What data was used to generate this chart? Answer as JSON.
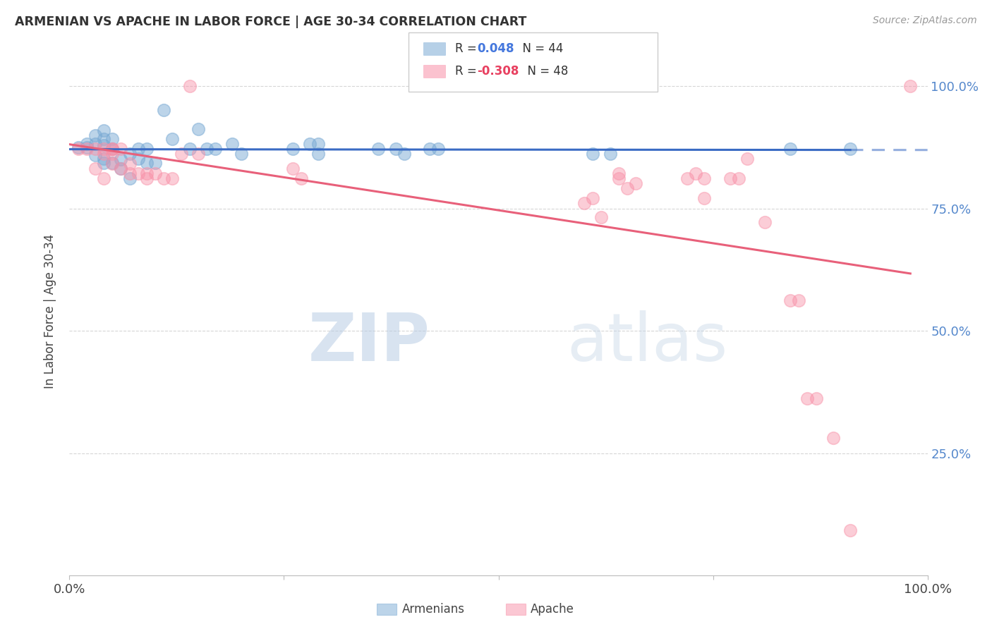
{
  "title": "ARMENIAN VS APACHE IN LABOR FORCE | AGE 30-34 CORRELATION CHART",
  "source": "Source: ZipAtlas.com",
  "ylabel": "In Labor Force | Age 30-34",
  "xlim": [
    0.0,
    1.0
  ],
  "ylim": [
    0.0,
    1.08
  ],
  "ytick_labels": [
    "25.0%",
    "50.0%",
    "75.0%",
    "100.0%"
  ],
  "ytick_values": [
    0.25,
    0.5,
    0.75,
    1.0
  ],
  "watermark_zip": "ZIP",
  "watermark_atlas": "atlas",
  "legend_armenian": "Armenians",
  "legend_apache": "Apache",
  "r_armenian": 0.048,
  "n_armenian": 44,
  "r_apache": -0.308,
  "n_apache": 48,
  "color_armenian": "#7aaad4",
  "color_apache": "#f891a8",
  "trendline_armenian_color": "#3a6bc4",
  "trendline_apache_color": "#e8607a",
  "grid_color": "#cccccc",
  "background_color": "#ffffff",
  "armenian_x": [
    0.01,
    0.02,
    0.02,
    0.03,
    0.03,
    0.03,
    0.04,
    0.04,
    0.04,
    0.04,
    0.04,
    0.05,
    0.05,
    0.05,
    0.06,
    0.06,
    0.07,
    0.07,
    0.08,
    0.08,
    0.09,
    0.09,
    0.1,
    0.11,
    0.12,
    0.14,
    0.15,
    0.16,
    0.17,
    0.19,
    0.2,
    0.26,
    0.28,
    0.29,
    0.29,
    0.36,
    0.38,
    0.39,
    0.42,
    0.43,
    0.61,
    0.63,
    0.84,
    0.91
  ],
  "armenian_y": [
    0.875,
    0.875,
    0.882,
    0.86,
    0.882,
    0.9,
    0.843,
    0.852,
    0.88,
    0.892,
    0.91,
    0.843,
    0.872,
    0.892,
    0.832,
    0.851,
    0.812,
    0.862,
    0.852,
    0.872,
    0.843,
    0.872,
    0.843,
    0.951,
    0.892,
    0.872,
    0.912,
    0.872,
    0.872,
    0.882,
    0.862,
    0.872,
    0.882,
    0.862,
    0.882,
    0.872,
    0.872,
    0.862,
    0.872,
    0.872,
    0.862,
    0.862,
    0.872,
    0.872
  ],
  "apache_x": [
    0.01,
    0.02,
    0.03,
    0.03,
    0.04,
    0.04,
    0.04,
    0.05,
    0.05,
    0.05,
    0.05,
    0.06,
    0.06,
    0.07,
    0.07,
    0.08,
    0.09,
    0.09,
    0.1,
    0.11,
    0.12,
    0.13,
    0.14,
    0.15,
    0.26,
    0.27,
    0.6,
    0.61,
    0.62,
    0.64,
    0.64,
    0.65,
    0.66,
    0.72,
    0.73,
    0.74,
    0.74,
    0.77,
    0.78,
    0.79,
    0.81,
    0.84,
    0.85,
    0.86,
    0.87,
    0.89,
    0.91,
    0.98
  ],
  "apache_y": [
    0.872,
    0.872,
    0.872,
    0.832,
    0.872,
    0.862,
    0.812,
    0.872,
    0.862,
    0.842,
    0.872,
    0.872,
    0.832,
    0.822,
    0.842,
    0.822,
    0.822,
    0.812,
    0.822,
    0.812,
    0.812,
    0.862,
    1.0,
    0.862,
    0.832,
    0.812,
    0.762,
    0.772,
    0.732,
    0.812,
    0.822,
    0.792,
    0.802,
    0.812,
    0.822,
    0.772,
    0.812,
    0.812,
    0.812,
    0.852,
    0.722,
    0.562,
    0.562,
    0.362,
    0.362,
    0.282,
    0.092,
    1.0
  ]
}
